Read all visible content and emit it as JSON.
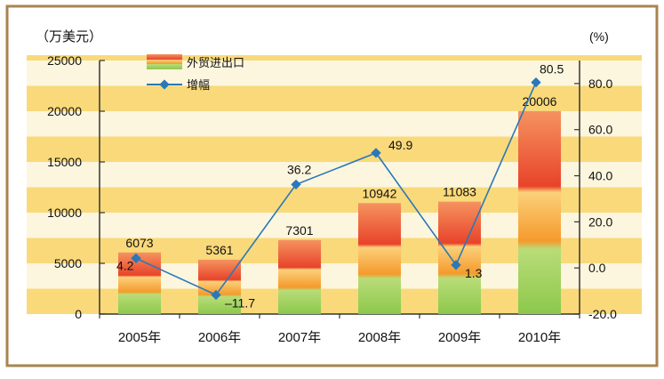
{
  "chart_data": {
    "type": "bar+line",
    "title": "",
    "categories": [
      "2005年",
      "2006年",
      "2007年",
      "2008年",
      "2009年",
      "2010年"
    ],
    "y_left": {
      "label": "（万美元）",
      "min": 0,
      "max": 25000,
      "ticks": [
        0,
        5000,
        10000,
        15000,
        20000,
        25000
      ]
    },
    "y_right": {
      "label": "(%)",
      "min": -20,
      "max": 90,
      "ticks": [
        "-20.0",
        "0.0",
        "20.0",
        "40.0",
        "60.0",
        "80.0"
      ]
    },
    "series": [
      {
        "name": "外贸进出口",
        "type": "bar",
        "values": [
          6073,
          5361,
          7301,
          10942,
          11083,
          20006
        ],
        "value_labels": [
          "6073",
          "5361",
          "7301",
          "10942",
          "11083",
          "20006"
        ]
      },
      {
        "name": "增幅",
        "type": "line",
        "values": [
          4.2,
          -11.7,
          36.2,
          49.9,
          1.3,
          80.5
        ],
        "value_labels": [
          "4.2",
          "–11.7",
          "36.2",
          "49.9",
          "1.3",
          "80.5"
        ]
      }
    ],
    "legend_position": "top-left",
    "colors": {
      "bar_top": "#e8432a",
      "bar_mid": "#f6a230",
      "bar_bottom": "#8cc84b",
      "line": "#2a78b8",
      "band": "#f9d97a",
      "frame": "#a98450"
    }
  }
}
